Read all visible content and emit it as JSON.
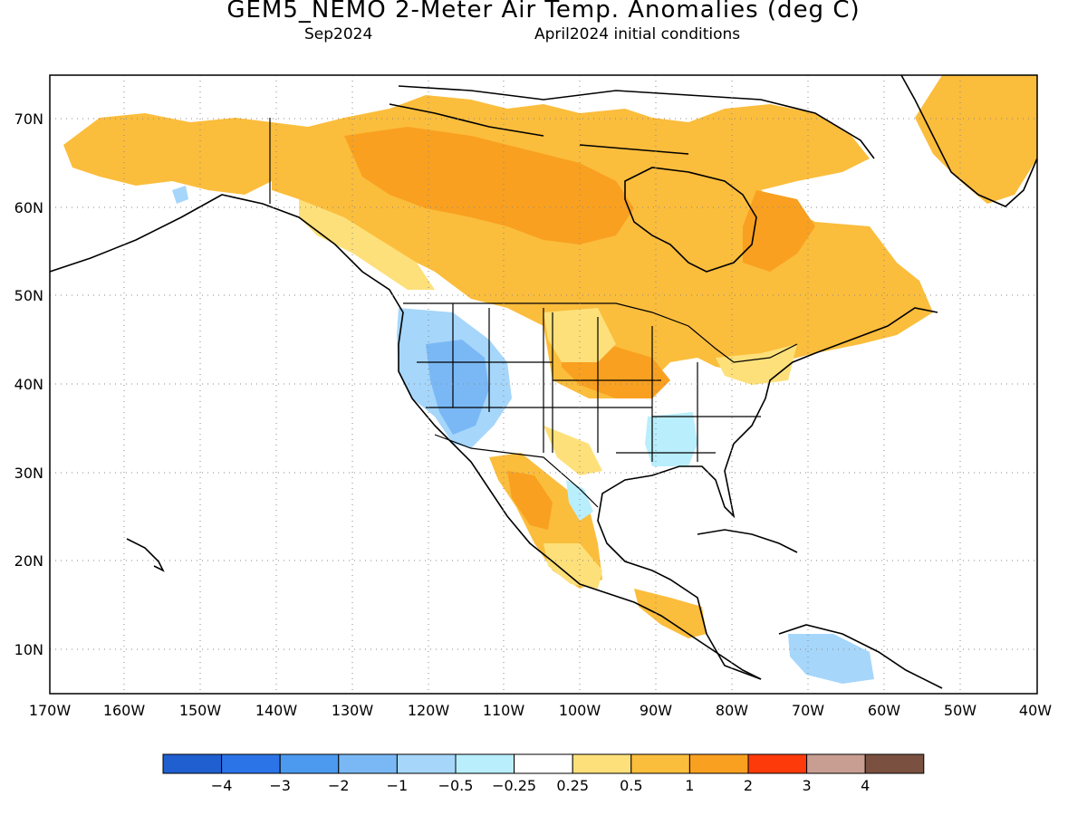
{
  "header": {
    "title": "GEM5_NEMO 2-Meter Air Temp. Anomalies (deg C)",
    "subtitle_left": "Sep2024",
    "subtitle_right": "April2024 initial conditions"
  },
  "map": {
    "region": "North America",
    "lat_ticks": [
      "70N",
      "60N",
      "50N",
      "40N",
      "30N",
      "20N",
      "10N"
    ],
    "lon_ticks": [
      "170W",
      "160W",
      "150W",
      "140W",
      "130W",
      "120W",
      "110W",
      "100W",
      "90W",
      "80W",
      "70W",
      "60W",
      "50W",
      "40W"
    ],
    "grid": "dotted"
  },
  "colorbar": {
    "colors": [
      "#1f5fd0",
      "#2b74e8",
      "#4b9af0",
      "#7ab8f5",
      "#a6d6fa",
      "#b9eefc",
      "#ffffff",
      "#fde07a",
      "#fbbd3c",
      "#f9a020",
      "#fd3a0a",
      "#c89e92",
      "#7a5040"
    ],
    "labels": [
      "−4",
      "−3",
      "−2",
      "−1",
      "−0.5",
      "−0.25",
      "0.25",
      "0.5",
      "1",
      "2",
      "3",
      "4"
    ]
  }
}
